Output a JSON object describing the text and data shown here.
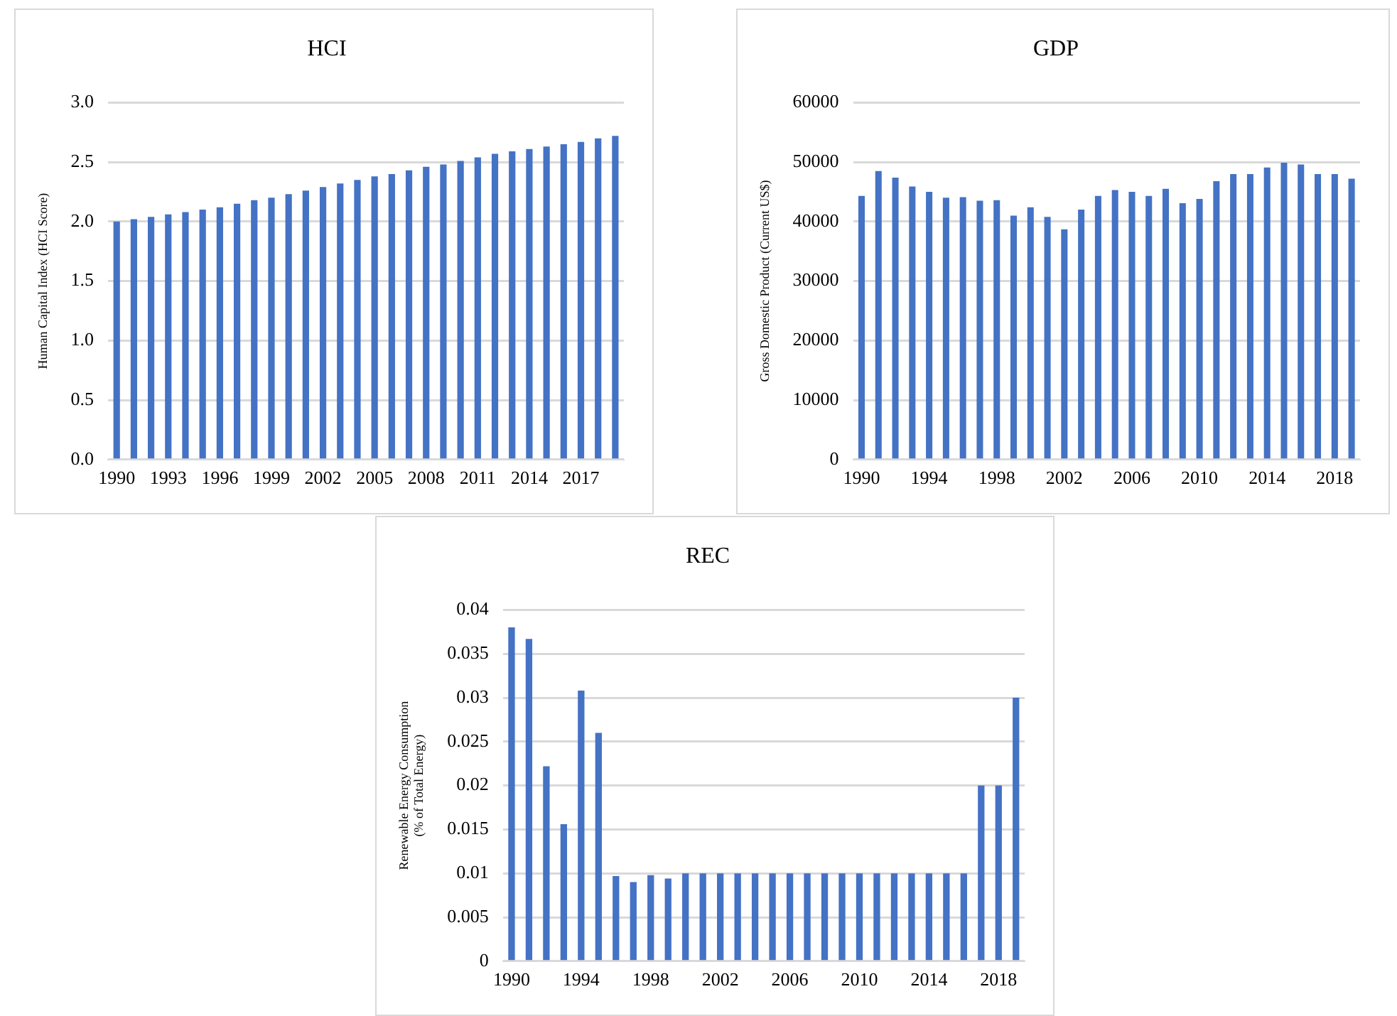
{
  "chart_data": [
    {
      "type": "bar",
      "title": "HCI",
      "ylabel": "Human Capital Index (HCI Score)",
      "color": "#4472c4",
      "categories": [
        "1990",
        null,
        null,
        "1993",
        null,
        null,
        "1996",
        null,
        null,
        "1999",
        null,
        null,
        "2002",
        null,
        null,
        "2005",
        null,
        null,
        "2008",
        null,
        null,
        "2011",
        null,
        null,
        "2014",
        null,
        null,
        "2017",
        null,
        null
      ],
      "values": [
        2.0,
        2.02,
        2.04,
        2.06,
        2.08,
        2.1,
        2.12,
        2.15,
        2.18,
        2.2,
        2.23,
        2.26,
        2.29,
        2.32,
        2.35,
        2.38,
        2.4,
        2.43,
        2.46,
        2.48,
        2.51,
        2.54,
        2.57,
        2.59,
        2.61,
        2.63,
        2.65,
        2.67,
        2.7,
        2.72
      ],
      "ylim": [
        0,
        3
      ],
      "yticks": [
        {
          "value": 0,
          "label": "0.0"
        },
        {
          "value": 0.5,
          "label": "0.5"
        },
        {
          "value": 1,
          "label": "1.0"
        },
        {
          "value": 1.5,
          "label": "1.5"
        },
        {
          "value": 2,
          "label": "2.0"
        },
        {
          "value": 2.5,
          "label": "2.5"
        },
        {
          "value": 3,
          "label": "3.0"
        }
      ],
      "grid": "y"
    },
    {
      "type": "bar",
      "title": "GDP",
      "ylabel": "Gross Domestic Product (Current US$)",
      "color": "#4472c4",
      "categories": [
        "1990",
        null,
        null,
        null,
        "1994",
        null,
        null,
        null,
        "1998",
        null,
        null,
        null,
        "2002",
        null,
        null,
        null,
        "2006",
        null,
        null,
        null,
        "2010",
        null,
        null,
        null,
        "2014",
        null,
        null,
        null,
        "2018",
        null
      ],
      "values": [
        44300,
        48500,
        47400,
        45900,
        45000,
        44000,
        44100,
        43500,
        43600,
        41000,
        42400,
        40800,
        38700,
        42000,
        44300,
        45300,
        45000,
        44300,
        45500,
        43100,
        43800,
        46800,
        48000,
        48000,
        49100,
        49900,
        49600,
        48000,
        48000,
        47200
      ],
      "ylim": [
        0,
        60000
      ],
      "yticks": [
        0,
        10000,
        20000,
        30000,
        40000,
        50000,
        60000
      ],
      "grid": "y"
    },
    {
      "type": "bar",
      "title": "REC",
      "ylabel": "Renewable Energy Consumption\n(% of Total Energy)",
      "color": "#4472c4",
      "categories": [
        "1990",
        null,
        null,
        null,
        "1994",
        null,
        null,
        null,
        "1998",
        null,
        null,
        null,
        "2002",
        null,
        null,
        null,
        "2006",
        null,
        null,
        null,
        "2010",
        null,
        null,
        null,
        "2014",
        null,
        null,
        null,
        "2018",
        null
      ],
      "values": [
        0.038,
        0.0367,
        0.0222,
        0.0156,
        0.0308,
        0.026,
        0.0097,
        0.009,
        0.0098,
        0.0094,
        0.01,
        0.01,
        0.01,
        0.01,
        0.01,
        0.01,
        0.01,
        0.01,
        0.01,
        0.01,
        0.01,
        0.01,
        0.01,
        0.01,
        0.01,
        0.01,
        0.01,
        0.02,
        0.02,
        0.03
      ],
      "ylim": [
        0,
        0.04
      ],
      "yticks": [
        0,
        0.005,
        0.01,
        0.015,
        0.02,
        0.025,
        0.03,
        0.035,
        0.04
      ],
      "grid": "y"
    }
  ]
}
